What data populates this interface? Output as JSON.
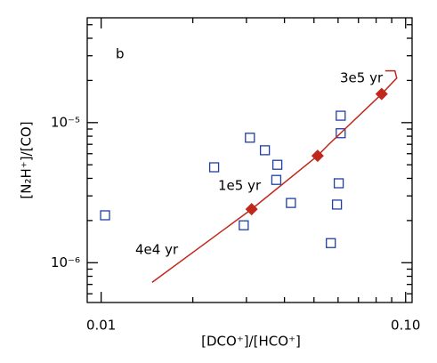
{
  "chart_data": {
    "type": "scatter",
    "xlabel": "[DCO⁺]/[HCO⁺]",
    "ylabel": "[N₂H⁺]/[CO]",
    "panel_label": "b",
    "annotations": [
      "3e5 yr",
      "1e5 yr",
      "4e4 yr"
    ],
    "xscale": "log",
    "yscale": "log",
    "xlim": [
      0.009,
      0.105
    ],
    "ylim": [
      5.2e-07,
      5.6e-05
    ],
    "xticks": [
      0.01,
      {
        "value": 0.1,
        "label": "0.10"
      }
    ],
    "yticks": [
      {
        "value": 1e-06,
        "label": "10⁻⁶"
      },
      {
        "value": 1e-05,
        "label": "10⁻⁵"
      }
    ],
    "xminorticks": [
      0.02,
      0.03,
      0.04,
      0.05,
      0.06,
      0.07,
      0.08,
      0.09
    ],
    "yminorticks": [
      6e-07,
      7e-07,
      8e-07,
      9e-07,
      2e-06,
      3e-06,
      4e-06,
      5e-06,
      6e-06,
      7e-06,
      8e-06,
      9e-06,
      2e-05,
      3e-05,
      4e-05,
      5e-05
    ],
    "series": [
      {
        "type": "scatter",
        "marker": "square",
        "color": "#1f3fa6",
        "x": [
          0.0103,
          0.0235,
          0.0308,
          0.0345,
          0.0379,
          0.0376,
          0.0294,
          0.042,
          0.0612,
          0.0612,
          0.0603,
          0.0595,
          0.0568
        ],
        "y": [
          2.18e-06,
          4.8e-06,
          7.8e-06,
          6.35e-06,
          5e-06,
          3.9e-06,
          1.85e-06,
          2.67e-06,
          1.12e-05,
          8.4e-06,
          3.69e-06,
          2.6e-06,
          1.38e-06
        ]
      },
      {
        "type": "line",
        "color": "#c0281c",
        "x": [
          0.0147,
          0.0312,
          0.0514,
          0.0557,
          0.0834,
          0.0935,
          0.0922,
          0.0857
        ],
        "y": [
          7.24e-07,
          2.41e-06,
          5.8e-06,
          6.93e-06,
          1.6e-05,
          2.08e-05,
          2.34e-05,
          2.34e-05
        ]
      },
      {
        "type": "scatter",
        "marker": "diamond",
        "color": "#c0281c",
        "x": [
          0.0312,
          0.0514,
          0.0834
        ],
        "y": [
          2.41e-06,
          5.8e-06,
          1.6e-05
        ]
      }
    ]
  }
}
